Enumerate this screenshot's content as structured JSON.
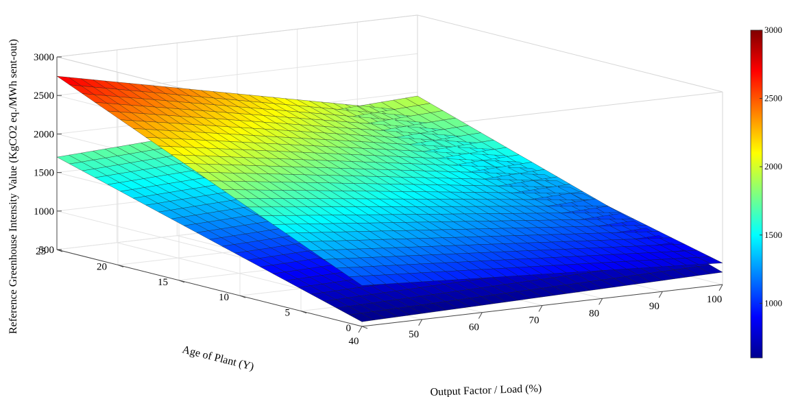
{
  "chart_data": {
    "type": "surface3d",
    "xlabel": "Output Factor / Load (%)",
    "ylabel": "Age of Plant (Y)",
    "zlabel": "Reference Greenhouse Intensity Value (KgCO2 eq./MWh sent-out)",
    "x_ticks": [
      40,
      50,
      60,
      70,
      80,
      90,
      100
    ],
    "y_ticks": [
      0,
      5,
      10,
      15,
      20,
      25
    ],
    "z_ticks": [
      500,
      1000,
      1500,
      2000,
      2500,
      3000
    ],
    "xlim": [
      40,
      100
    ],
    "ylim": [
      0,
      25
    ],
    "zlim": [
      500,
      3000
    ],
    "grid": true,
    "colormap": "jet",
    "colorbar": {
      "range": [
        600,
        3000
      ],
      "ticks": [
        1000,
        1500,
        2000,
        2500,
        3000
      ]
    },
    "series": [
      {
        "x_range": [
          40,
          100
        ],
        "y_range": [
          0,
          25
        ],
        "z_corners": {
          "x40_y0": 1030,
          "x40_y25": 2750,
          "x100_y0": 780,
          "x100_y25": 1750
        }
      },
      {
        "x_range": [
          40,
          100
        ],
        "y_range": [
          0,
          25
        ],
        "z_corners": {
          "x40_y0": 560,
          "x40_y25": 1700,
          "x100_y0": 660,
          "x100_y25": 1950
        }
      }
    ]
  }
}
